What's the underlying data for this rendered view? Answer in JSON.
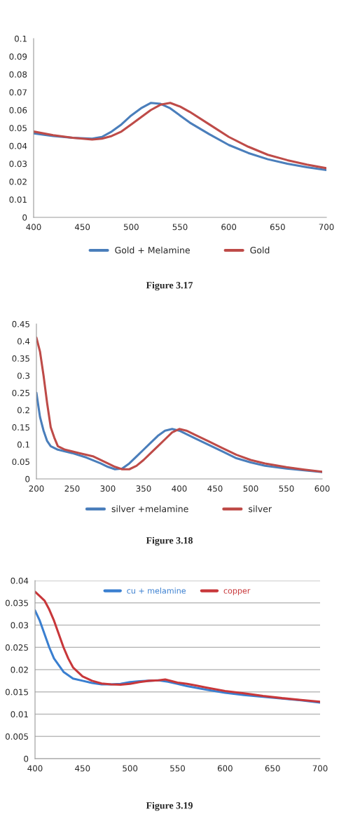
{
  "chart_data": [
    {
      "type": "line",
      "annotations": [
        "Figure 3.17"
      ],
      "legend": "bottom",
      "grid": false,
      "xlim": [
        400,
        700
      ],
      "xticks": [
        400,
        450,
        500,
        550,
        600,
        650,
        700
      ],
      "ylim": [
        0,
        0.1
      ],
      "yticks": [
        0,
        0.01,
        0.02,
        0.03,
        0.04,
        0.05,
        0.06,
        0.07,
        0.08,
        0.09,
        0.1
      ],
      "series": [
        {
          "name": "Gold + Melamine",
          "color": "#4a7ebb",
          "x": [
            400,
            420,
            440,
            460,
            470,
            480,
            490,
            500,
            510,
            520,
            530,
            540,
            550,
            560,
            580,
            600,
            620,
            640,
            660,
            680,
            700
          ],
          "values": [
            0.047,
            0.0455,
            0.0445,
            0.044,
            0.045,
            0.048,
            0.052,
            0.057,
            0.061,
            0.064,
            0.0635,
            0.061,
            0.057,
            0.053,
            0.0465,
            0.0405,
            0.036,
            0.0325,
            0.03,
            0.028,
            0.0265
          ]
        },
        {
          "name": "Gold",
          "color": "#be4b48",
          "x": [
            400,
            420,
            440,
            460,
            470,
            480,
            490,
            500,
            510,
            520,
            530,
            540,
            550,
            560,
            580,
            600,
            620,
            640,
            660,
            680,
            700
          ],
          "values": [
            0.048,
            0.046,
            0.0445,
            0.0435,
            0.044,
            0.0455,
            0.048,
            0.052,
            0.056,
            0.06,
            0.063,
            0.064,
            0.062,
            0.059,
            0.052,
            0.045,
            0.0395,
            0.035,
            0.032,
            0.0295,
            0.0275
          ]
        }
      ]
    },
    {
      "type": "line",
      "annotations": [
        "Figure 3.18"
      ],
      "legend": "bottom",
      "grid": false,
      "xlim": [
        200,
        600
      ],
      "xticks": [
        200,
        250,
        300,
        350,
        400,
        450,
        500,
        550,
        600
      ],
      "ylim": [
        0,
        0.45
      ],
      "yticks": [
        0,
        0.05,
        0.1,
        0.15,
        0.2,
        0.25,
        0.3,
        0.35,
        0.4,
        0.45
      ],
      "series": [
        {
          "name": "silver +melamine",
          "color": "#4a7ebb",
          "x": [
            200,
            205,
            210,
            215,
            220,
            230,
            250,
            270,
            290,
            300,
            310,
            320,
            330,
            340,
            350,
            360,
            370,
            380,
            390,
            400,
            410,
            420,
            440,
            460,
            480,
            500,
            520,
            550,
            575,
            600
          ],
          "values": [
            0.25,
            0.18,
            0.14,
            0.11,
            0.095,
            0.085,
            0.075,
            0.062,
            0.045,
            0.035,
            0.028,
            0.03,
            0.045,
            0.065,
            0.085,
            0.105,
            0.125,
            0.14,
            0.145,
            0.14,
            0.13,
            0.12,
            0.1,
            0.08,
            0.06,
            0.048,
            0.038,
            0.03,
            0.025,
            0.02
          ]
        },
        {
          "name": "silver",
          "color": "#be4b48",
          "x": [
            200,
            205,
            210,
            215,
            220,
            225,
            230,
            240,
            260,
            280,
            300,
            310,
            320,
            330,
            340,
            350,
            360,
            370,
            380,
            390,
            400,
            410,
            420,
            440,
            460,
            480,
            500,
            520,
            550,
            575,
            600
          ],
          "values": [
            0.41,
            0.37,
            0.3,
            0.22,
            0.15,
            0.12,
            0.095,
            0.085,
            0.075,
            0.065,
            0.045,
            0.035,
            0.028,
            0.028,
            0.038,
            0.055,
            0.075,
            0.095,
            0.115,
            0.135,
            0.145,
            0.14,
            0.13,
            0.11,
            0.09,
            0.07,
            0.055,
            0.045,
            0.034,
            0.027,
            0.021
          ]
        }
      ]
    },
    {
      "type": "line",
      "annotations": [
        "Figure 3.19"
      ],
      "legend": "top",
      "grid": "y",
      "xlim": [
        400,
        700
      ],
      "xticks": [
        400,
        450,
        500,
        550,
        600,
        650,
        700
      ],
      "ylim": [
        0,
        0.04
      ],
      "yticks": [
        0,
        0.005,
        0.01,
        0.015,
        0.02,
        0.025,
        0.03,
        0.035,
        0.04
      ],
      "series": [
        {
          "name": "cu + melamine",
          "color": "#3a7fd0",
          "x": [
            400,
            405,
            410,
            415,
            420,
            425,
            430,
            440,
            450,
            460,
            470,
            480,
            490,
            500,
            510,
            520,
            530,
            540,
            550,
            560,
            570,
            580,
            600,
            620,
            640,
            660,
            680,
            700
          ],
          "values": [
            0.0333,
            0.031,
            0.028,
            0.025,
            0.0225,
            0.021,
            0.0195,
            0.018,
            0.0175,
            0.017,
            0.0167,
            0.0167,
            0.0168,
            0.0172,
            0.0174,
            0.0175,
            0.0176,
            0.0173,
            0.0168,
            0.0163,
            0.0159,
            0.0155,
            0.0148,
            0.0143,
            0.0139,
            0.0135,
            0.0131,
            0.0126
          ]
        },
        {
          "name": "copper",
          "color": "#c8373a",
          "x": [
            400,
            405,
            410,
            415,
            420,
            425,
            430,
            435,
            440,
            450,
            460,
            470,
            480,
            490,
            500,
            510,
            520,
            530,
            537,
            550,
            560,
            570,
            580,
            600,
            620,
            640,
            660,
            680,
            700
          ],
          "values": [
            0.0375,
            0.0365,
            0.0355,
            0.0335,
            0.031,
            0.028,
            0.025,
            0.0225,
            0.0205,
            0.0185,
            0.0175,
            0.0169,
            0.0167,
            0.0166,
            0.0168,
            0.0172,
            0.0175,
            0.0176,
            0.0178,
            0.0171,
            0.0168,
            0.0164,
            0.016,
            0.0152,
            0.0147,
            0.0141,
            0.0136,
            0.0132,
            0.0128
          ]
        }
      ]
    }
  ]
}
